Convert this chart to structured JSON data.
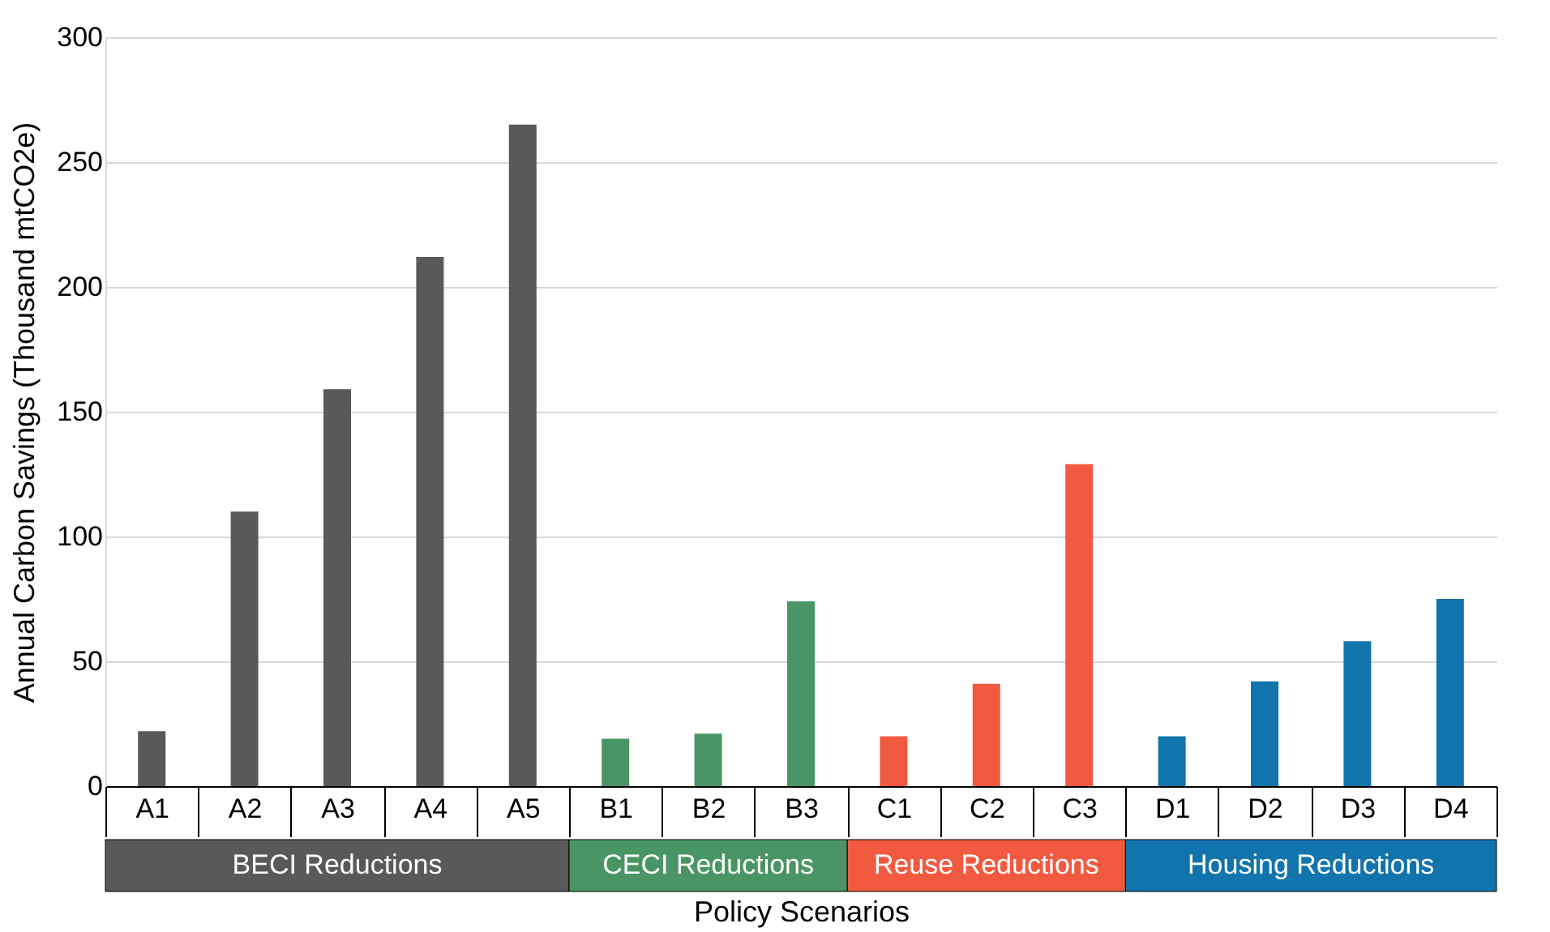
{
  "chart_data": {
    "type": "bar",
    "xlabel": "Policy Scenarios",
    "ylabel": "Annual Carbon Savings (Thousand mtCO2e)",
    "categories": [
      "A1",
      "A2",
      "A3",
      "A4",
      "A5",
      "B1",
      "B2",
      "B3",
      "C1",
      "C2",
      "C3",
      "D1",
      "D2",
      "D3",
      "D4"
    ],
    "series": [
      {
        "name": "BECI Reductions",
        "color": "#595959",
        "values": [
          22,
          110,
          159,
          212,
          265,
          null,
          null,
          null,
          null,
          null,
          null,
          null,
          null,
          null,
          null
        ]
      },
      {
        "name": "CECI Reductions",
        "color": "#4a9565",
        "values": [
          null,
          null,
          null,
          null,
          null,
          19,
          21,
          74,
          null,
          null,
          null,
          null,
          null,
          null,
          null
        ]
      },
      {
        "name": "Reuse Reductions",
        "color": "#f15a40",
        "values": [
          null,
          null,
          null,
          null,
          null,
          null,
          null,
          null,
          20,
          41,
          129,
          null,
          null,
          null,
          null
        ]
      },
      {
        "name": "Housing Reductions",
        "color": "#1274ac",
        "values": [
          null,
          null,
          null,
          null,
          null,
          null,
          null,
          null,
          null,
          null,
          null,
          20,
          42,
          58,
          75
        ]
      }
    ],
    "ylim": [
      0,
      300
    ],
    "yticks": [
      0,
      50,
      100,
      150,
      200,
      250,
      300
    ],
    "grid": "y",
    "legend": false
  }
}
